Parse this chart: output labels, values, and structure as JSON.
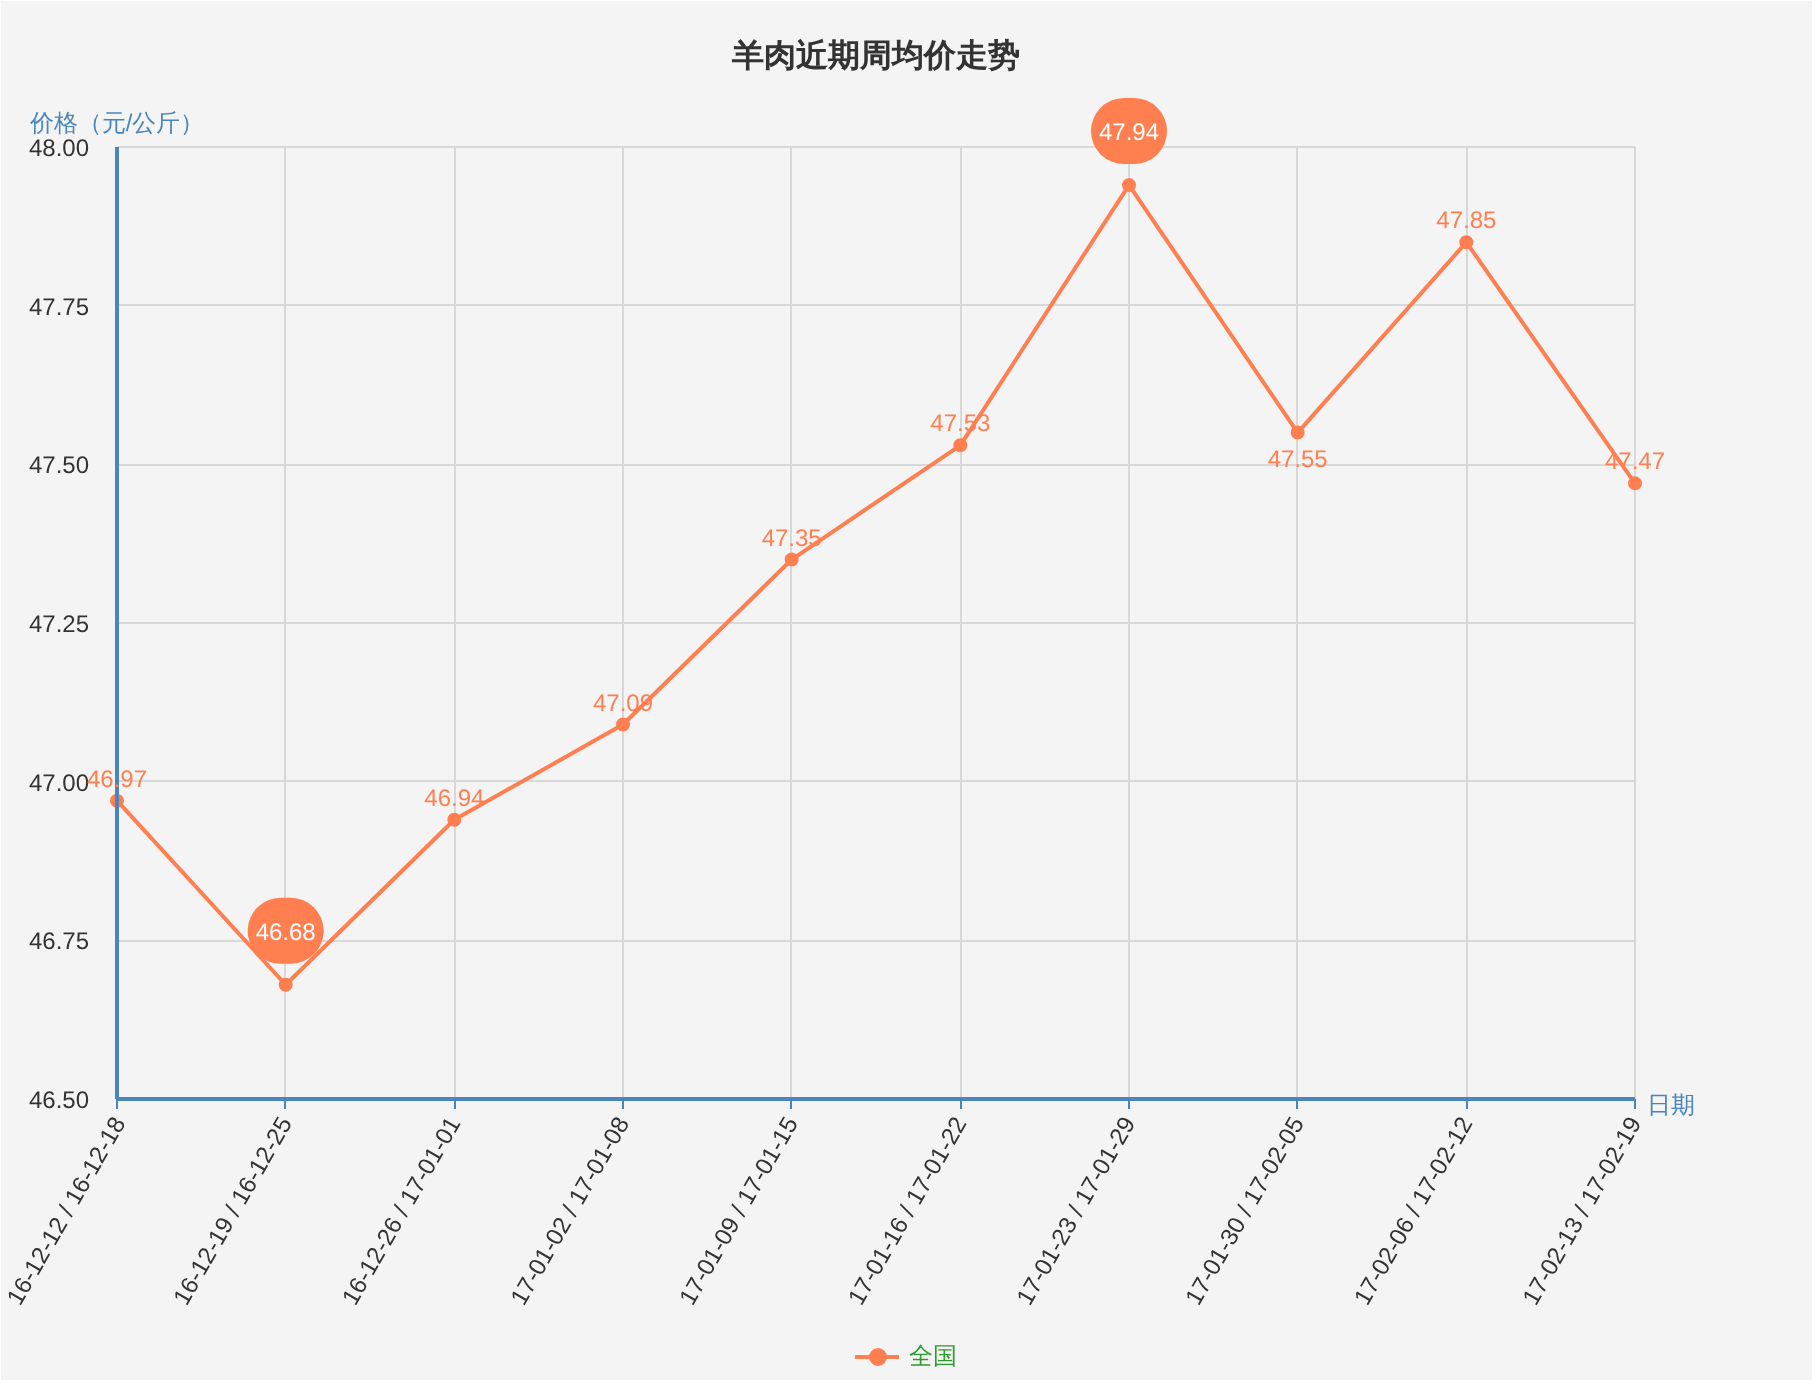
{
  "chart_data": {
    "type": "line",
    "title": "羊肉近期周均价走势",
    "xlabel": "日期",
    "ylabel": "价格（元/公斤）",
    "categories": [
      "16-12-12 / 16-12-18",
      "16-12-19 / 16-12-25",
      "16-12-26 / 17-01-01",
      "17-01-02 / 17-01-08",
      "17-01-09 / 17-01-15",
      "17-01-16 / 17-01-22",
      "17-01-23 / 17-01-29",
      "17-01-30 / 17-02-05",
      "17-02-06 / 17-02-12",
      "17-02-13 / 17-02-19"
    ],
    "series": [
      {
        "name": "全国",
        "color": "#ff7f50",
        "values": [
          46.97,
          46.68,
          46.94,
          47.09,
          47.35,
          47.53,
          47.94,
          47.55,
          47.85,
          47.47
        ],
        "value_labels": [
          "46.97",
          null,
          "46.94",
          "47.09",
          "47.35",
          "47.53",
          null,
          "47.55",
          "47.85",
          "47.47"
        ]
      }
    ],
    "annotations": [
      {
        "text": "46.68",
        "x": "16-12-19 / 16-12-25",
        "y": 46.68
      },
      {
        "text": "47.94",
        "x": "17-01-23 / 17-01-29",
        "y": 47.94
      }
    ],
    "ylim": [
      46.5,
      48.0
    ],
    "yticks": [
      {
        "value": 46.5,
        "label": "46.50"
      },
      46.75,
      {
        "value": 47.0,
        "label": "47.00"
      },
      47.25,
      {
        "value": 47.5,
        "label": "47.50"
      },
      47.75,
      {
        "value": 48.0,
        "label": "48.00"
      }
    ],
    "grid": true,
    "legend": "bottom",
    "marker": "circle",
    "line_style": "solid"
  }
}
